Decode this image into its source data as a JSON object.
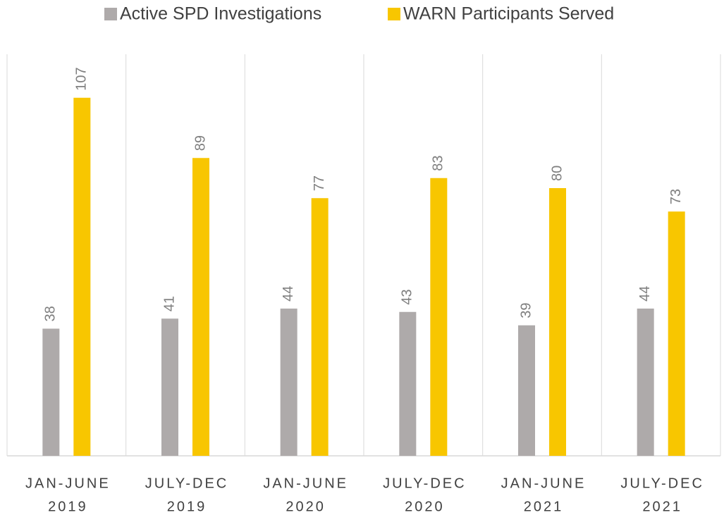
{
  "chart_data": {
    "type": "bar",
    "categories": [
      [
        "JAN-JUNE",
        "2019"
      ],
      [
        "JULY-DEC",
        "2019"
      ],
      [
        "JAN-JUNE",
        "2020"
      ],
      [
        "JULY-DEC",
        "2020"
      ],
      [
        "JAN-JUNE",
        "2021"
      ],
      [
        "JULY-DEC",
        "2021"
      ]
    ],
    "series": [
      {
        "name": "Active SPD Investigations",
        "color": "#aeaaaa",
        "values": [
          38,
          41,
          44,
          43,
          39,
          44
        ]
      },
      {
        "name": "WARN Participants Served",
        "color": "#f8c600",
        "values": [
          107,
          89,
          77,
          83,
          80,
          73
        ]
      }
    ],
    "ylim": [
      0,
      120
    ],
    "legend": "top"
  }
}
